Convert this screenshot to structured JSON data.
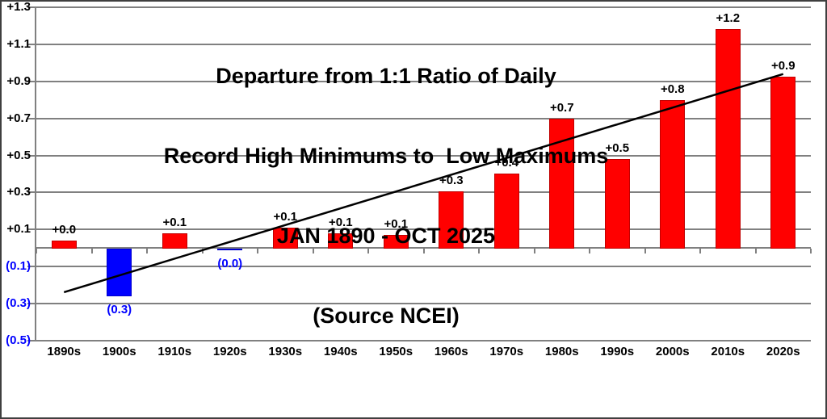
{
  "chart_data": {
    "type": "bar",
    "title_lines": [
      "Departure from 1:1 Ratio of Daily",
      "Record High Minimums to  Low Maximums",
      "JAN 1890 - OCT 2025",
      "(Source NCEI)"
    ],
    "categories": [
      "1890s",
      "1900s",
      "1910s",
      "1920s",
      "1930s",
      "1940s",
      "1950s",
      "1960s",
      "1970s",
      "1980s",
      "1990s",
      "2000s",
      "2010s",
      "2020s"
    ],
    "series": [
      {
        "name": "Departure from 1:1 ratio",
        "values": [
          0.04,
          -0.26,
          0.08,
          -0.012,
          0.11,
          0.08,
          0.07,
          0.305,
          0.4,
          0.7,
          0.48,
          0.8,
          1.185,
          0.925
        ]
      }
    ],
    "bar_labels": [
      "+0.0",
      "(0.3)",
      "+0.1",
      "(0.0)",
      "+0.1",
      "+0.1",
      "+0.1",
      "+0.3",
      "+0.4",
      "+0.7",
      "+0.5",
      "+0.8",
      "+1.2",
      "+0.9"
    ],
    "y_ticks": [
      {
        "value": 1.3,
        "label": "+1.3"
      },
      {
        "value": 1.1,
        "label": "+1.1"
      },
      {
        "value": 0.9,
        "label": "+0.9"
      },
      {
        "value": 0.7,
        "label": "+0.7"
      },
      {
        "value": 0.5,
        "label": "+0.5"
      },
      {
        "value": 0.3,
        "label": "+0.3"
      },
      {
        "value": 0.1,
        "label": "+0.1"
      },
      {
        "value": -0.1,
        "label": "(0.1)"
      },
      {
        "value": -0.3,
        "label": "(0.3)"
      },
      {
        "value": -0.5,
        "label": "(0.5)"
      }
    ],
    "ylim": [
      -0.5,
      1.3
    ],
    "grid": true,
    "legend": null,
    "trendline": {
      "start_index": 0,
      "start_value": -0.24,
      "end_index": 13,
      "end_value": 0.94
    },
    "colors": {
      "positive_bar": "#ff0000",
      "positive_bar_border": "#c00000",
      "negative_bar": "#0000ff",
      "negative_bar_border": "#0000cc",
      "positive_label": "#000000",
      "negative_label": "#0000ff",
      "gridline": "#808080",
      "axis_line": "#808080",
      "trend_line": "#000000",
      "title_color": "#000000",
      "x_label_color": "#000000"
    }
  }
}
